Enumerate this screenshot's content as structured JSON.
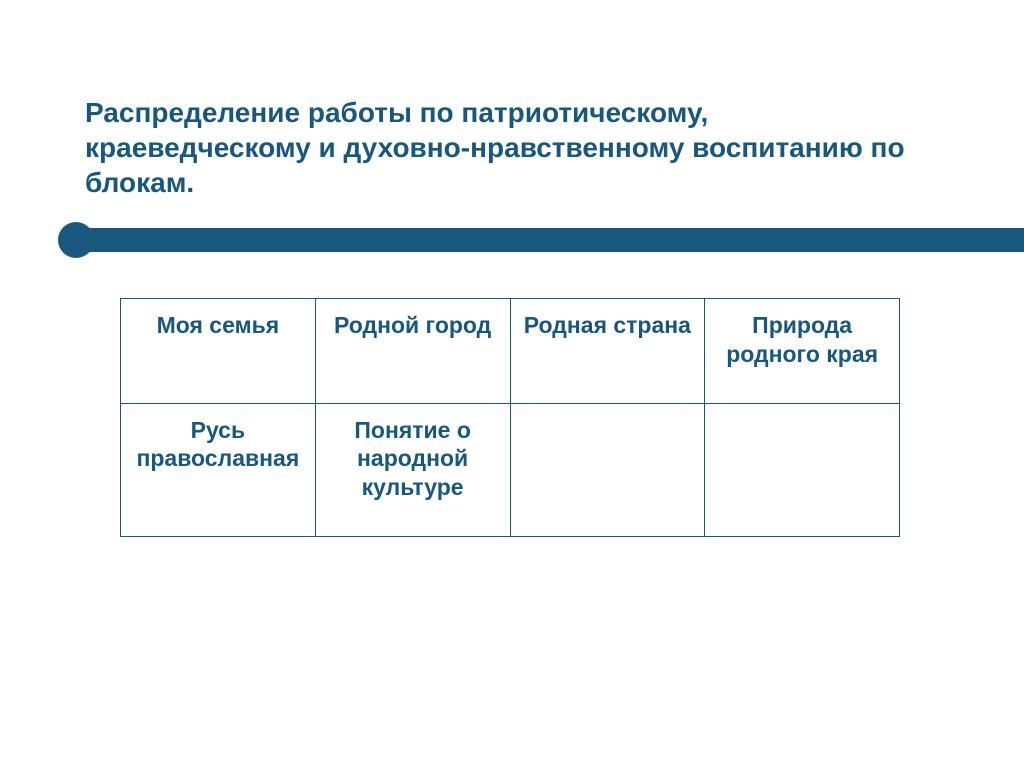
{
  "slide": {
    "title": "Распределение работы по патриотическому, краеведческому и духовно-нравственному воспитанию по  блокам.",
    "colors": {
      "accent": "#18587e",
      "background": "#ffffff",
      "table_border": "#18587e",
      "text": "#18587e"
    },
    "table": {
      "type": "table",
      "columns": 4,
      "rows": [
        [
          "Моя семья",
          "Родной город",
          "Родная страна",
          "Природа родного края"
        ],
        [
          "Русь православная",
          "Понятие о народной культуре",
          "",
          ""
        ]
      ],
      "cell_font_size": 23,
      "cell_font_weight": "bold",
      "border_width": 1.5
    },
    "title_font_size": 28
  }
}
